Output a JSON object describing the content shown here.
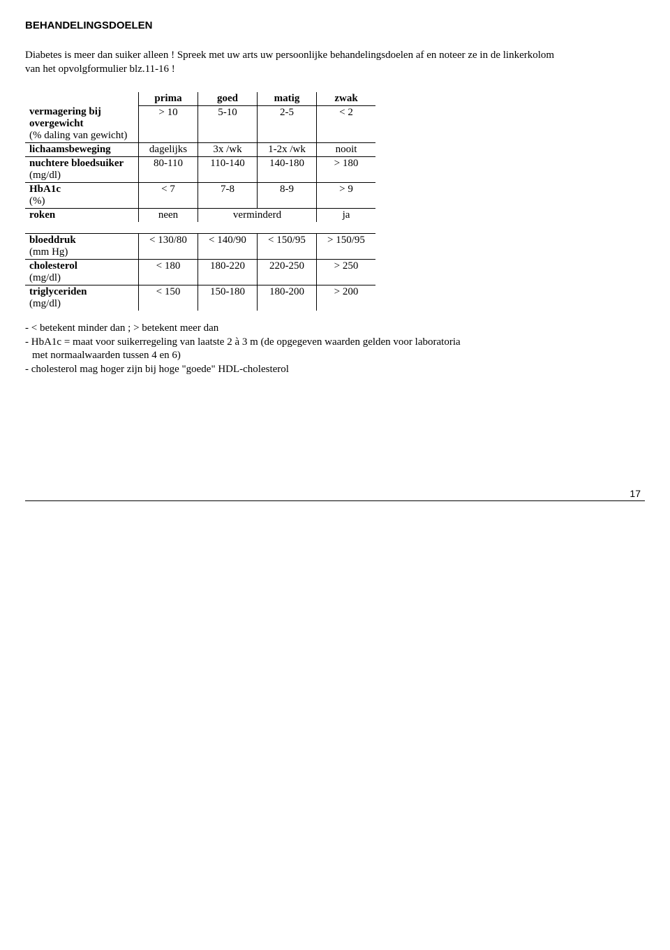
{
  "title": "BEHANDELINGSDOELEN",
  "intro": "Diabetes is meer dan suiker alleen ! Spreek met uw arts uw persoonlijke behandelingsdoelen af en noteer ze in de linkerkolom van het opvolgformulier blz.11-16 !",
  "columns": [
    "prima",
    "goed",
    "matig",
    "zwak"
  ],
  "table1": {
    "rows": [
      {
        "label": "vermagering bij overgewicht",
        "sublabel": "(% daling van gewicht)",
        "cells": [
          "> 10",
          "5-10",
          "2-5",
          "< 2"
        ]
      },
      {
        "label": "lichaamsbeweging",
        "sublabel": "",
        "cells": [
          "dagelijks",
          "3x /wk",
          "1-2x /wk",
          "nooit"
        ]
      },
      {
        "label": "nuchtere bloedsuiker",
        "sublabel": "(mg/dl)",
        "cells": [
          "80-110",
          "110-140",
          "140-180",
          "> 180"
        ]
      },
      {
        "label": "HbA1c",
        "sublabel": "(%)",
        "cells": [
          "< 7",
          "7-8",
          "8-9",
          "> 9"
        ]
      },
      {
        "label": "roken",
        "sublabel": "",
        "cells": [
          "neen",
          "verminderd",
          "",
          "ja"
        ],
        "merge_middle": true
      }
    ]
  },
  "table2": {
    "rows": [
      {
        "label": "bloeddruk",
        "sublabel": "(mm Hg)",
        "cells": [
          "< 130/80",
          "< 140/90",
          "< 150/95",
          "> 150/95"
        ]
      },
      {
        "label": "cholesterol",
        "sublabel": "(mg/dl)",
        "cells": [
          "< 180",
          "180-220",
          "220-250",
          "> 250"
        ]
      },
      {
        "label": "triglyceriden",
        "sublabel": "(mg/dl)",
        "cells": [
          "< 150",
          "150-180",
          "180-200",
          "> 200"
        ]
      }
    ]
  },
  "notes": [
    "- < betekent minder dan ; > betekent meer dan",
    "- HbA1c = maat voor suikerregeling van laatste 2 à 3 m (de opgegeven waarden gelden voor laboratoria met normaalwaarden tussen 4 en 6)",
    "- cholesterol mag hoger zijn bij hoge \"goede\" HDL-cholesterol"
  ],
  "page_number": "17"
}
